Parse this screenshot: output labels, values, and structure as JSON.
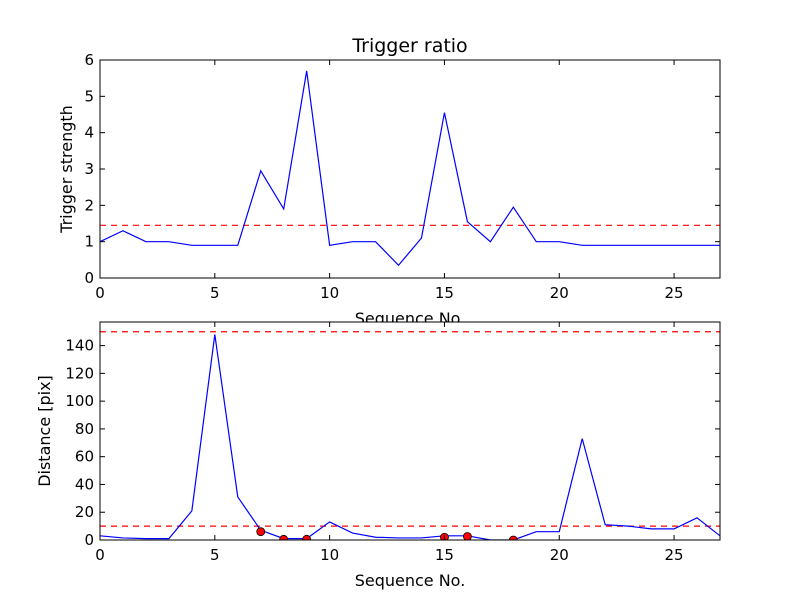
{
  "chart_data": [
    {
      "type": "line",
      "title": "Trigger ratio",
      "xlabel": "Sequence No.",
      "ylabel": "Trigger strength",
      "xlim": [
        0,
        27
      ],
      "ylim": [
        0,
        6
      ],
      "xticks": [
        "0",
        "5",
        "10",
        "15",
        "20",
        "25"
      ],
      "yticks": [
        "0",
        "1",
        "2",
        "3",
        "4",
        "5",
        "6"
      ],
      "grid": false,
      "series": [
        {
          "color": "#0000ff",
          "style": "solid",
          "x": [
            0,
            1,
            2,
            3,
            4,
            5,
            6,
            7,
            8,
            9,
            10,
            11,
            12,
            13,
            14,
            15,
            16,
            17,
            18,
            19,
            20,
            21,
            22,
            23,
            24,
            25,
            26,
            27
          ],
          "y": [
            1.0,
            1.3,
            1.0,
            1.0,
            0.9,
            0.9,
            0.9,
            2.95,
            1.9,
            5.7,
            0.9,
            1.0,
            1.0,
            0.35,
            1.1,
            4.55,
            1.55,
            1.0,
            1.95,
            1.0,
            1.0,
            0.9,
            0.9,
            0.9,
            0.9,
            0.9,
            0.9,
            0.9
          ]
        }
      ],
      "hlines": [
        {
          "y": 1.45,
          "color": "#ff0000",
          "style": "dashed"
        }
      ]
    },
    {
      "type": "line",
      "title": "",
      "xlabel": "Sequence No.",
      "ylabel": "Distance [pix]",
      "xlim": [
        0,
        27
      ],
      "ylim": [
        0,
        157
      ],
      "xticks": [
        "0",
        "5",
        "10",
        "15",
        "20",
        "25"
      ],
      "yticks": [
        "0",
        "20",
        "40",
        "60",
        "80",
        "100",
        "120",
        "140"
      ],
      "grid": false,
      "series": [
        {
          "color": "#0000ff",
          "style": "solid",
          "x": [
            0,
            1,
            2,
            3,
            4,
            5,
            6,
            7,
            8,
            9,
            10,
            11,
            12,
            13,
            14,
            15,
            16,
            17,
            18,
            19,
            20,
            21,
            22,
            23,
            24,
            25,
            26,
            27
          ],
          "y": [
            3,
            1.5,
            1,
            1,
            21,
            148,
            31,
            7,
            1,
            1,
            13,
            5,
            2,
            1.5,
            1.5,
            3,
            3,
            0,
            0,
            6,
            6,
            73,
            11,
            10,
            8,
            8,
            16,
            3
          ]
        },
        {
          "color": "#ff0000",
          "style": "markers",
          "x": [
            7,
            8,
            9,
            15,
            16,
            18
          ],
          "y": [
            6,
            0.5,
            0.5,
            2,
            2.5,
            0
          ]
        }
      ],
      "hlines": [
        {
          "y": 150,
          "color": "#ff0000",
          "style": "dashed"
        },
        {
          "y": 10,
          "color": "#ff0000",
          "style": "dashed"
        }
      ]
    }
  ]
}
